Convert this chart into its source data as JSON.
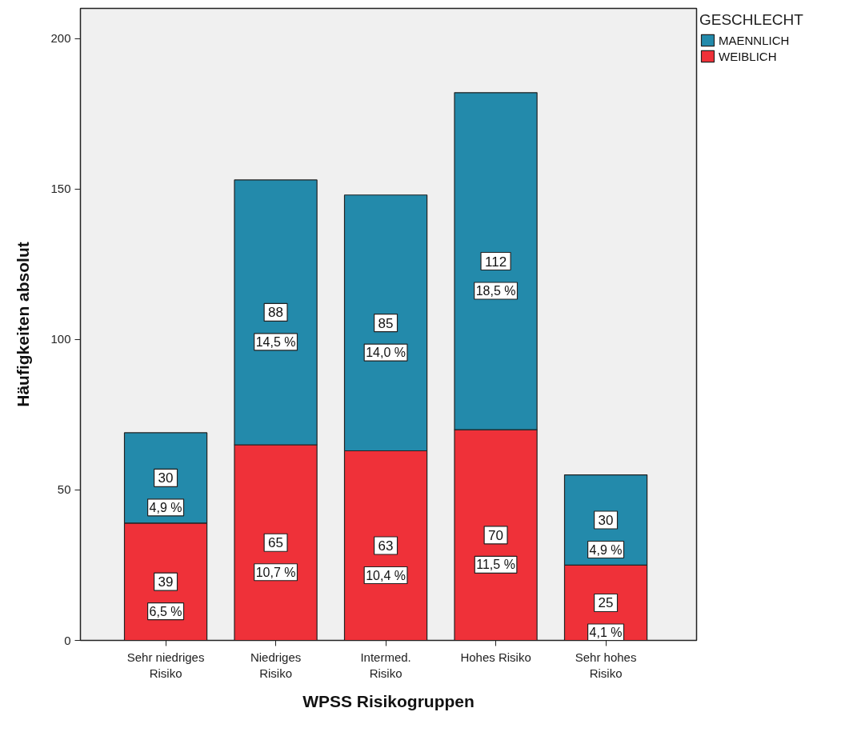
{
  "chart_data": {
    "type": "bar",
    "stacked": true,
    "xlabel": "WPSS Risikogruppen",
    "ylabel": "Häufigkeiten absolut",
    "legend_title": "GESCHLECHT",
    "legend": "top right",
    "categories": [
      "Sehr niedriges\nRisiko",
      "Niedriges\nRisiko",
      "Intermed.\nRisiko",
      "Hohes Risiko",
      "Sehr hohes\nRisiko"
    ],
    "ylim": [
      0,
      210
    ],
    "yticks": [
      0,
      50,
      100,
      150,
      200
    ],
    "series": [
      {
        "name": "WEIBLICH",
        "color": "#ef3139",
        "values": [
          39,
          65,
          63,
          70,
          25
        ],
        "value_labels": [
          "39\n6,5 %",
          "65\n10,7 %",
          "63\n10,4 %",
          "70\n11,5 %",
          "25\n4,1 %"
        ]
      },
      {
        "name": "MAENNLICH",
        "color": "#238aab",
        "values": [
          30,
          88,
          85,
          112,
          30
        ],
        "value_labels": [
          "30\n4,9 %",
          "88\n14,5 %",
          "85\n14,0 %",
          "112\n18,5 %",
          "30\n4,9 %"
        ]
      }
    ]
  }
}
